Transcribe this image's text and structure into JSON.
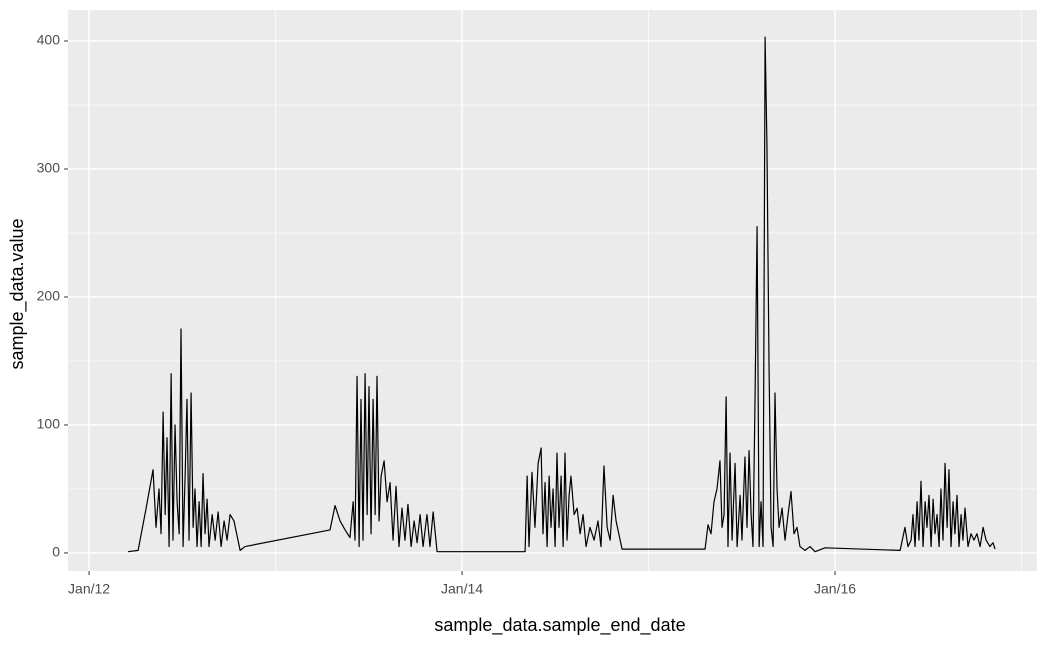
{
  "chart_data": {
    "type": "line",
    "x_label": "sample_data.sample_end_date",
    "y_label": "sample_data.value",
    "color": "#000000",
    "grid": true,
    "xlim": [
      2011.887,
      2017.083
    ],
    "ylim": [
      -14.1,
      424.2
    ],
    "xticks": [
      {
        "value": 2012,
        "label": "Jan/12"
      },
      {
        "value": 2014,
        "label": "Jan/14"
      },
      {
        "value": 2016,
        "label": "Jan/16"
      }
    ],
    "x_minor_ticks": [
      2013,
      2015,
      2017
    ],
    "yticks": [
      0,
      100,
      200,
      300,
      400
    ],
    "y_minor_ticks": [
      50,
      150,
      250,
      350
    ],
    "x": [
      2012.209,
      2012.263,
      2012.306,
      2012.343,
      2012.359,
      2012.375,
      2012.386,
      2012.397,
      2012.408,
      2012.418,
      2012.429,
      2012.44,
      2012.45,
      2012.461,
      2012.472,
      2012.483,
      2012.493,
      2012.504,
      2012.515,
      2012.525,
      2012.536,
      2012.547,
      2012.558,
      2012.568,
      2012.579,
      2012.59,
      2012.601,
      2012.611,
      2012.622,
      2012.633,
      2012.643,
      2012.66,
      2012.676,
      2012.692,
      2012.708,
      2012.724,
      2012.74,
      2012.756,
      2012.777,
      2012.81,
      2012.836,
      2013.292,
      2013.319,
      2013.346,
      2013.373,
      2013.399,
      2013.416,
      2013.426,
      2013.437,
      2013.448,
      2013.458,
      2013.469,
      2013.48,
      2013.491,
      2013.501,
      2013.512,
      2013.523,
      2013.534,
      2013.544,
      2013.555,
      2013.566,
      2013.582,
      2013.598,
      2013.614,
      2013.63,
      2013.646,
      2013.662,
      2013.678,
      2013.694,
      2013.71,
      2013.727,
      2013.743,
      2013.759,
      2013.775,
      2013.791,
      2013.812,
      2013.828,
      2013.845,
      2013.866,
      2014.338,
      2014.349,
      2014.359,
      2014.375,
      2014.391,
      2014.408,
      2014.424,
      2014.434,
      2014.445,
      2014.456,
      2014.467,
      2014.477,
      2014.488,
      2014.499,
      2014.509,
      2014.52,
      2014.531,
      2014.542,
      2014.552,
      2014.563,
      2014.574,
      2014.584,
      2014.601,
      2014.617,
      2014.633,
      2014.649,
      2014.665,
      2014.686,
      2014.708,
      2014.729,
      2014.745,
      2014.761,
      2014.778,
      2014.794,
      2014.81,
      2014.826,
      2014.858,
      2015.303,
      2015.319,
      2015.335,
      2015.351,
      2015.367,
      2015.383,
      2015.394,
      2015.405,
      2015.416,
      2015.426,
      2015.437,
      2015.448,
      2015.464,
      2015.475,
      2015.491,
      2015.501,
      2015.517,
      2015.528,
      2015.539,
      2015.55,
      2015.56,
      2015.571,
      2015.582,
      2015.593,
      2015.603,
      2015.614,
      2015.625,
      2015.635,
      2015.646,
      2015.657,
      2015.668,
      2015.678,
      2015.689,
      2015.7,
      2015.716,
      2015.732,
      2015.748,
      2015.764,
      2015.78,
      2015.796,
      2015.812,
      2015.839,
      2015.866,
      2015.893,
      2015.946,
      2016.349,
      2016.375,
      2016.391,
      2016.408,
      2016.418,
      2016.429,
      2016.44,
      2016.45,
      2016.461,
      2016.472,
      2016.483,
      2016.493,
      2016.504,
      2016.515,
      2016.526,
      2016.536,
      2016.547,
      2016.558,
      2016.568,
      2016.579,
      2016.59,
      2016.601,
      2016.611,
      2016.622,
      2016.633,
      2016.643,
      2016.654,
      2016.665,
      2016.676,
      2016.686,
      2016.697,
      2016.713,
      2016.729,
      2016.745,
      2016.761,
      2016.778,
      2016.794,
      2016.81,
      2016.831,
      2016.847,
      2016.858
    ],
    "values": [
      1,
      2,
      35,
      65,
      20,
      50,
      15,
      110,
      30,
      90,
      5,
      140,
      10,
      100,
      40,
      15,
      175,
      5,
      60,
      120,
      10,
      125,
      20,
      50,
      5,
      40,
      5,
      62,
      15,
      42,
      5,
      30,
      10,
      32,
      5,
      25,
      10,
      30,
      25,
      2,
      5,
      18,
      37,
      25,
      18,
      12,
      40,
      10,
      138,
      5,
      120,
      10,
      140,
      30,
      130,
      15,
      120,
      30,
      138,
      25,
      60,
      72,
      40,
      55,
      10,
      52,
      5,
      35,
      10,
      38,
      5,
      25,
      8,
      30,
      5,
      30,
      5,
      32,
      1,
      1,
      60,
      5,
      63,
      20,
      70,
      82,
      15,
      55,
      5,
      60,
      20,
      50,
      5,
      78,
      20,
      60,
      5,
      78,
      10,
      45,
      60,
      30,
      35,
      15,
      30,
      5,
      20,
      10,
      25,
      5,
      68,
      20,
      10,
      45,
      25,
      3,
      3,
      22,
      15,
      40,
      50,
      72,
      20,
      30,
      122,
      5,
      78,
      10,
      70,
      5,
      45,
      10,
      75,
      20,
      80,
      30,
      5,
      120,
      255,
      5,
      40,
      5,
      403,
      318,
      148,
      20,
      5,
      125,
      50,
      20,
      35,
      10,
      30,
      48,
      15,
      20,
      5,
      2,
      5,
      1,
      4,
      2,
      20,
      5,
      10,
      30,
      5,
      40,
      10,
      56,
      5,
      40,
      20,
      45,
      5,
      42,
      15,
      30,
      5,
      50,
      10,
      70,
      20,
      65,
      5,
      40,
      15,
      45,
      5,
      30,
      10,
      35,
      5,
      15,
      10,
      15,
      5,
      20,
      10,
      5,
      8,
      3
    ]
  }
}
